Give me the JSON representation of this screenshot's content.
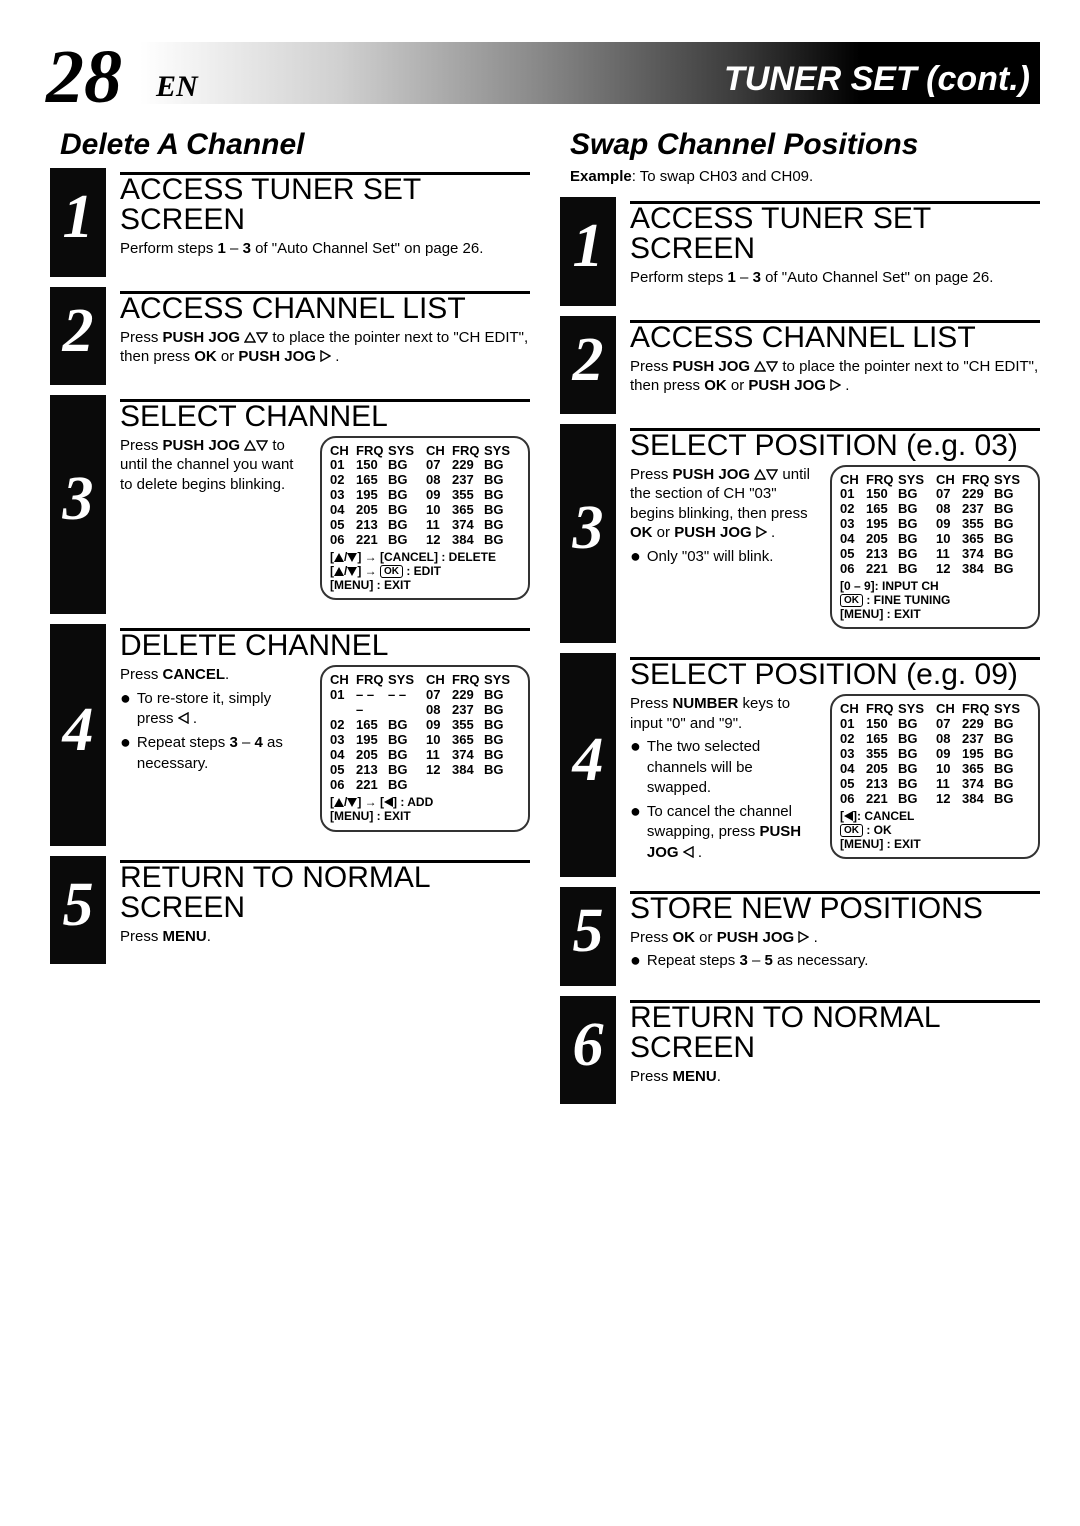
{
  "page_number": "28",
  "page_lang": "EN",
  "header_title": "TUNER SET (cont.)",
  "colors": {
    "ink": "#000000",
    "bg": "#ffffff",
    "gradient_start": "#ffffff",
    "gradient_end": "#000000"
  },
  "left": {
    "section_title": "Delete A Channel",
    "steps": [
      {
        "num": "1",
        "heading": "ACCESS TUNER SET SCREEN",
        "body_html": "Perform steps <b>1</b> – <b>3</b> of \"Auto Channel Set\" on page 26."
      },
      {
        "num": "2",
        "heading": "ACCESS CHANNEL LIST",
        "body_html": "Press <b>PUSH JOG</b> △▽ to place the pointer next to \"CH EDIT\", then press <b>OK</b> or <b>PUSH JOG</b> ▷ ."
      },
      {
        "num": "3",
        "heading": "SELECT CHANNEL",
        "body_html": "Press <b>PUSH JOG</b> △▽ to until the channel you want to delete begins blinking.",
        "osd": {
          "cols": [
            "CH",
            "FRQ",
            "SYS"
          ],
          "left_rows": [
            [
              "01",
              "150",
              "BG"
            ],
            [
              "02",
              "165",
              "BG"
            ],
            [
              "03",
              "195",
              "BG"
            ],
            [
              "04",
              "205",
              "BG"
            ],
            [
              "05",
              "213",
              "BG"
            ],
            [
              "06",
              "221",
              "BG"
            ]
          ],
          "right_rows": [
            [
              "07",
              "229",
              "BG"
            ],
            [
              "08",
              "237",
              "BG"
            ],
            [
              "09",
              "355",
              "BG"
            ],
            [
              "10",
              "365",
              "BG"
            ],
            [
              "11",
              "374",
              "BG"
            ],
            [
              "12",
              "384",
              "BG"
            ]
          ],
          "footer": [
            "[▲/▼] → [CANCEL] : DELETE",
            "[▲/▼] → ⊘K : EDIT",
            "[MENU] : EXIT"
          ],
          "pointer_row": 0
        }
      },
      {
        "num": "4",
        "heading": "DELETE CHANNEL",
        "body_html": "Press <b>CANCEL</b>.",
        "bullets": [
          "To re-store it, simply press ◁ .",
          "Repeat steps <b>3</b> – <b>4</b> as necessary."
        ],
        "osd": {
          "cols": [
            "CH",
            "FRQ",
            "SYS"
          ],
          "left_rows": [
            [
              "01",
              "– – –",
              "– –"
            ],
            [
              "02",
              "165",
              "BG"
            ],
            [
              "03",
              "195",
              "BG"
            ],
            [
              "04",
              "205",
              "BG"
            ],
            [
              "05",
              "213",
              "BG"
            ],
            [
              "06",
              "221",
              "BG"
            ]
          ],
          "right_rows": [
            [
              "07",
              "229",
              "BG"
            ],
            [
              "08",
              "237",
              "BG"
            ],
            [
              "09",
              "355",
              "BG"
            ],
            [
              "10",
              "365",
              "BG"
            ],
            [
              "11",
              "374",
              "BG"
            ],
            [
              "12",
              "384",
              "BG"
            ]
          ],
          "footer": [
            "[▲/▼] → [◀] : ADD",
            "[MENU] : EXIT"
          ],
          "pointer_row": 0
        }
      },
      {
        "num": "5",
        "heading": "RETURN TO NORMAL SCREEN",
        "body_html": "Press <b>MENU</b>."
      }
    ]
  },
  "right": {
    "section_title": "Swap Channel Positions",
    "subtitle_html": "<b>Example</b>: To swap CH03 and CH09.",
    "steps": [
      {
        "num": "1",
        "heading": "ACCESS TUNER SET SCREEN",
        "body_html": "Perform steps <b>1</b> – <b>3</b> of \"Auto Channel Set\" on page 26."
      },
      {
        "num": "2",
        "heading": "ACCESS CHANNEL LIST",
        "body_html": "Press <b>PUSH JOG</b> △▽ to place the pointer next to \"CH EDIT\", then press <b>OK</b> or <b>PUSH JOG</b> ▷ ."
      },
      {
        "num": "3",
        "heading": "SELECT POSITION (e.g. 03)",
        "body_html": "Press <b>PUSH JOG</b> △▽ until the section of CH \"03\" begins blinking, then press <b>OK</b> or <b>PUSH JOG</b> ▷ .",
        "bullets": [
          "Only \"03\" will blink."
        ],
        "osd": {
          "cols": [
            "CH",
            "FRQ",
            "SYS"
          ],
          "left_rows": [
            [
              "01",
              "150",
              "BG"
            ],
            [
              "02",
              "165",
              "BG"
            ],
            [
              "03",
              "195",
              "BG"
            ],
            [
              "04",
              "205",
              "BG"
            ],
            [
              "05",
              "213",
              "BG"
            ],
            [
              "06",
              "221",
              "BG"
            ]
          ],
          "right_rows": [
            [
              "07",
              "229",
              "BG"
            ],
            [
              "08",
              "237",
              "BG"
            ],
            [
              "09",
              "355",
              "BG"
            ],
            [
              "10",
              "365",
              "BG"
            ],
            [
              "11",
              "374",
              "BG"
            ],
            [
              "12",
              "384",
              "BG"
            ]
          ],
          "footer": [
            "[0 – 9]: INPUT CH",
            "⊘K : FINE TUNING",
            "[MENU] : EXIT"
          ],
          "pointer_row": 2
        }
      },
      {
        "num": "4",
        "heading": "SELECT POSITION (e.g. 09)",
        "body_html": "Press <b>NUMBER</b> keys to input \"0\" and \"9\".",
        "bullets": [
          "The two selected channels will be swapped.",
          "To cancel the channel swapping, press <b>PUSH JOG</b> ◁ ."
        ],
        "osd": {
          "cols": [
            "CH",
            "FRQ",
            "SYS"
          ],
          "left_rows": [
            [
              "01",
              "150",
              "BG"
            ],
            [
              "02",
              "165",
              "BG"
            ],
            [
              "03",
              "355",
              "BG"
            ],
            [
              "04",
              "205",
              "BG"
            ],
            [
              "05",
              "213",
              "BG"
            ],
            [
              "06",
              "221",
              "BG"
            ]
          ],
          "right_rows": [
            [
              "07",
              "229",
              "BG"
            ],
            [
              "08",
              "237",
              "BG"
            ],
            [
              "09",
              "195",
              "BG"
            ],
            [
              "10",
              "365",
              "BG"
            ],
            [
              "11",
              "374",
              "BG"
            ],
            [
              "12",
              "384",
              "BG"
            ]
          ],
          "footer": [
            "[◀]: CANCEL",
            "⊘K : OK",
            "[MENU] : EXIT"
          ],
          "pointer_swap_a": 2,
          "pointer_swap_b": 2
        }
      },
      {
        "num": "5",
        "heading": "STORE NEW POSITIONS",
        "body_html": "Press <b>OK</b> or <b>PUSH JOG</b> ▷ .",
        "bullets": [
          "Repeat steps <b>3</b> – <b>5</b> as necessary."
        ]
      },
      {
        "num": "6",
        "heading": "RETURN TO NORMAL SCREEN",
        "body_html": "Press <b>MENU</b>."
      }
    ]
  }
}
